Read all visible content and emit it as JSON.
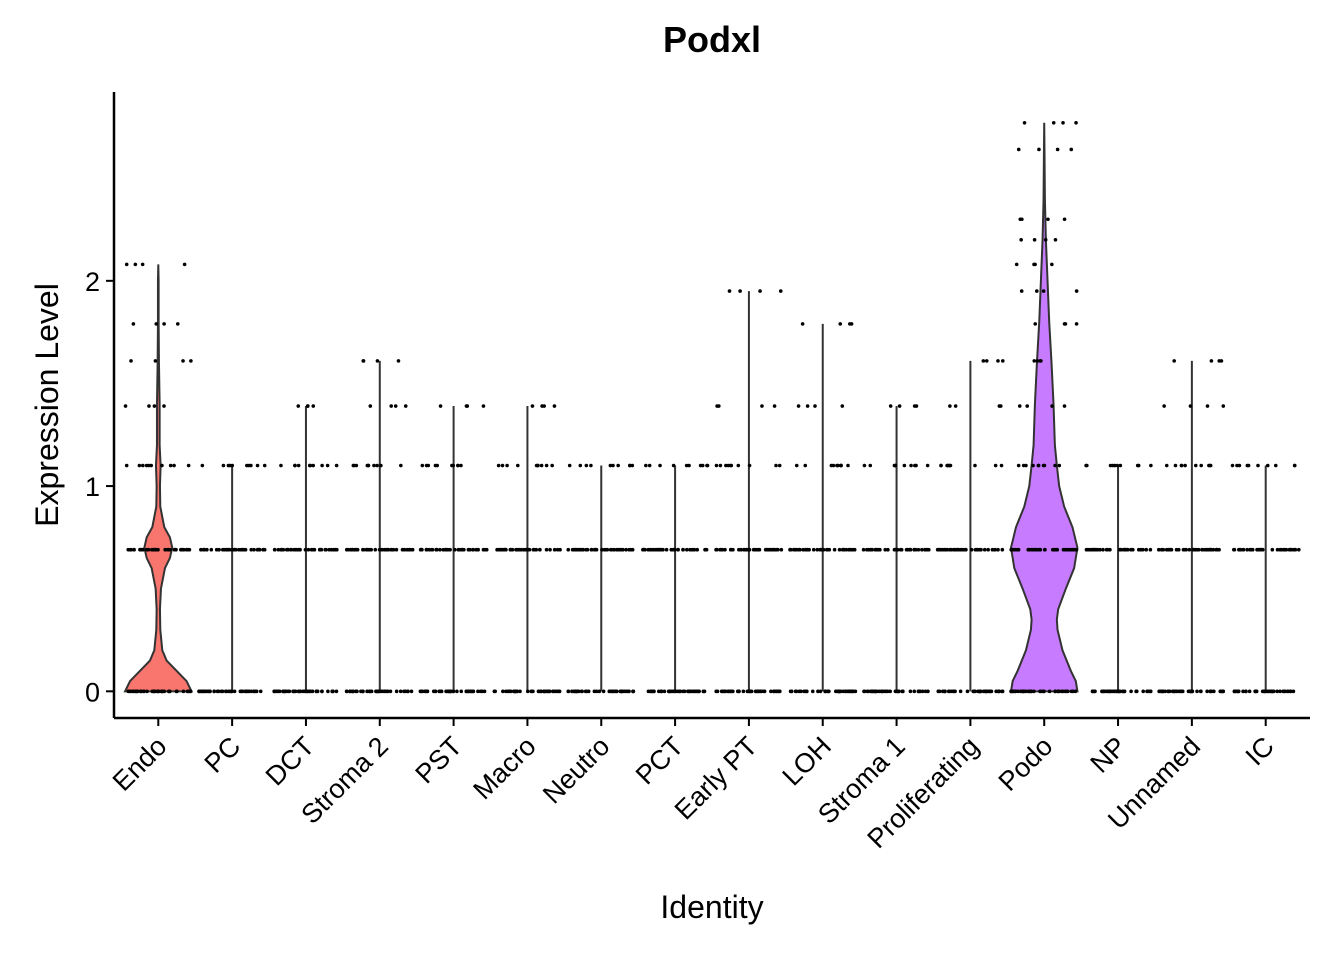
{
  "chart_data": {
    "type": "violin",
    "title": "Podxl",
    "x_label": "Identity",
    "y_label": "Expression Level",
    "ylim": [
      -0.13,
      2.92
    ],
    "yticks": [
      0,
      1,
      2
    ],
    "violins": [
      {
        "name": "Endo",
        "color": "#F8766D",
        "max": 2.08,
        "dots": [
          0,
          0.69,
          1.1,
          1.39,
          1.61,
          1.79,
          2.08
        ],
        "density_y": [
          0,
          0.05,
          0.1,
          0.15,
          0.2,
          0.3,
          0.4,
          0.5,
          0.6,
          0.65,
          0.7,
          0.75,
          0.8,
          0.9,
          1.0,
          1.1,
          1.2,
          1.4,
          1.6,
          1.8,
          2.0,
          2.08
        ],
        "density": [
          1.0,
          0.85,
          0.55,
          0.25,
          0.12,
          0.06,
          0.05,
          0.08,
          0.2,
          0.35,
          0.42,
          0.35,
          0.18,
          0.06,
          0.05,
          0.07,
          0.04,
          0.04,
          0.02,
          0.01,
          0.01,
          0
        ]
      },
      {
        "name": "PC",
        "max": 1.1,
        "dots": [
          0,
          0.69,
          1.1
        ]
      },
      {
        "name": "DCT",
        "max": 1.39,
        "dots": [
          0,
          0.69,
          1.1,
          1.39
        ]
      },
      {
        "name": "Stroma 2",
        "max": 1.61,
        "dots": [
          0,
          0.69,
          1.1,
          1.39,
          1.61
        ]
      },
      {
        "name": "PST",
        "max": 1.39,
        "dots": [
          0,
          0.69,
          1.1,
          1.39
        ]
      },
      {
        "name": "Macro",
        "max": 1.39,
        "dots": [
          0,
          0.69,
          1.1,
          1.39
        ]
      },
      {
        "name": "Neutro",
        "max": 1.1,
        "dots": [
          0,
          0.69,
          1.1
        ]
      },
      {
        "name": "PCT",
        "max": 1.1,
        "dots": [
          0,
          0.69,
          1.1
        ]
      },
      {
        "name": "Early PT",
        "max": 1.95,
        "dots": [
          0,
          0.69,
          1.1,
          1.39,
          1.95
        ]
      },
      {
        "name": "LOH",
        "max": 1.79,
        "dots": [
          0,
          0.69,
          1.1,
          1.39,
          1.79
        ]
      },
      {
        "name": "Stroma 1",
        "max": 1.39,
        "dots": [
          0,
          0.69,
          1.1,
          1.39
        ]
      },
      {
        "name": "Proliferating",
        "max": 1.61,
        "dots": [
          0,
          0.69,
          1.1,
          1.39,
          1.61
        ]
      },
      {
        "name": "Podo",
        "color": "#C77CFF",
        "max": 2.77,
        "dots": [
          0,
          0.69,
          1.1,
          1.39,
          1.61,
          1.79,
          1.95,
          2.08,
          2.2,
          2.3,
          2.64,
          2.77
        ],
        "density_y": [
          0,
          0.05,
          0.1,
          0.2,
          0.3,
          0.35,
          0.4,
          0.5,
          0.6,
          0.7,
          0.8,
          0.9,
          1.0,
          1.1,
          1.2,
          1.4,
          1.6,
          1.8,
          2.0,
          2.2,
          2.4,
          2.6,
          2.77
        ],
        "density": [
          1.0,
          0.95,
          0.8,
          0.55,
          0.4,
          0.38,
          0.42,
          0.65,
          0.9,
          1.0,
          0.85,
          0.6,
          0.45,
          0.38,
          0.32,
          0.28,
          0.22,
          0.15,
          0.1,
          0.05,
          0.02,
          0.01,
          0
        ]
      },
      {
        "name": "NP",
        "max": 1.1,
        "dots": [
          0,
          0.69,
          1.1
        ]
      },
      {
        "name": "Unnamed",
        "max": 1.61,
        "dots": [
          0,
          0.69,
          1.1,
          1.39,
          1.61
        ]
      },
      {
        "name": "IC",
        "max": 1.1,
        "dots": [
          0,
          0.69,
          1.1
        ]
      }
    ]
  }
}
